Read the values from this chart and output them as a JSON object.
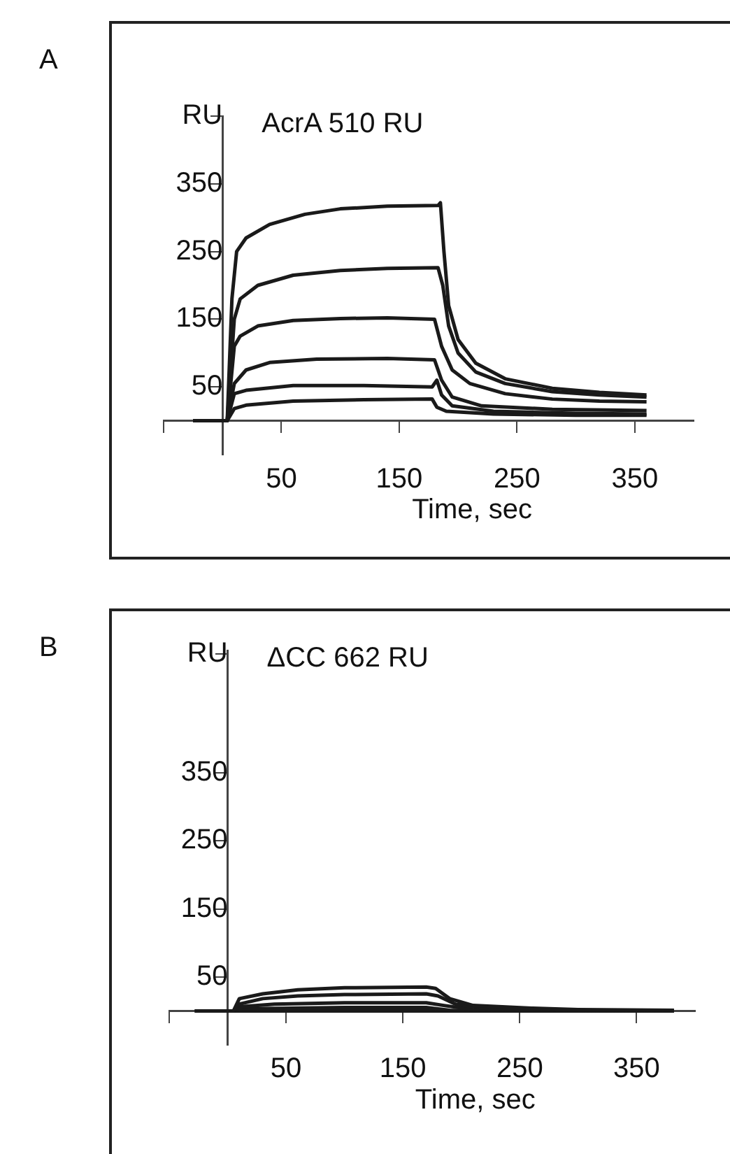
{
  "chart_data": [
    {
      "type": "line",
      "title": "A",
      "xlabel": "Time, sec",
      "annotations": [
        "AcrA 510 RU"
      ],
      "xlim": [
        -50,
        400
      ],
      "ylim": [
        -50,
        450
      ],
      "xticks": [
        {
          "value": -50,
          "label": null
        },
        50,
        150,
        250,
        350
      ],
      "yticks": [
        50,
        150,
        250,
        350,
        {
          "value": 450,
          "label": "RU"
        }
      ],
      "grid": false,
      "legend": false,
      "marker": "none",
      "line_style": "solid",
      "series": [
        {
          "color": "#1a1a1a",
          "x": [
            -25,
            4,
            8,
            12,
            20,
            40,
            70,
            100,
            140,
            183,
            185,
            188,
            192,
            200,
            215,
            240,
            280,
            320,
            360
          ],
          "values": [
            0,
            0,
            180,
            250,
            270,
            290,
            305,
            313,
            317,
            318,
            322,
            250,
            170,
            120,
            85,
            62,
            48,
            42,
            38
          ]
        },
        {
          "color": "#1a1a1a",
          "x": [
            -25,
            4,
            10,
            15,
            30,
            60,
            100,
            140,
            183,
            187,
            192,
            200,
            215,
            240,
            280,
            320,
            360
          ],
          "values": [
            0,
            0,
            150,
            180,
            200,
            215,
            222,
            225,
            226,
            200,
            140,
            100,
            72,
            55,
            43,
            38,
            35
          ]
        },
        {
          "color": "#1a1a1a",
          "x": [
            -25,
            4,
            10,
            15,
            30,
            60,
            100,
            140,
            180,
            186,
            195,
            210,
            240,
            280,
            320,
            360
          ],
          "values": [
            0,
            0,
            110,
            125,
            140,
            148,
            151,
            152,
            150,
            110,
            75,
            55,
            40,
            32,
            29,
            28
          ]
        },
        {
          "color": "#1a1a1a",
          "x": [
            -25,
            4,
            10,
            20,
            40,
            80,
            140,
            180,
            186,
            195,
            220,
            280,
            360
          ],
          "values": [
            0,
            0,
            55,
            75,
            86,
            91,
            92,
            90,
            60,
            35,
            22,
            17,
            15
          ]
        },
        {
          "color": "#1a1a1a",
          "x": [
            -25,
            4,
            10,
            20,
            60,
            120,
            178,
            182,
            186,
            195,
            230,
            300,
            360
          ],
          "values": [
            0,
            0,
            40,
            45,
            52,
            52,
            50,
            60,
            38,
            22,
            14,
            11,
            10
          ]
        },
        {
          "color": "#1a1a1a",
          "x": [
            -25,
            4,
            10,
            20,
            60,
            120,
            178,
            182,
            190,
            230,
            300,
            360
          ],
          "values": [
            0,
            0,
            18,
            23,
            29,
            31,
            32,
            20,
            14,
            10,
            8,
            8
          ]
        }
      ]
    },
    {
      "type": "line",
      "title": "B",
      "xlabel": "Time, sec",
      "annotations": [
        "ΔCC 662 RU"
      ],
      "xlim": [
        -50,
        400
      ],
      "ylim": [
        -50,
        530
      ],
      "xticks": [
        {
          "value": -50,
          "label": null
        },
        50,
        150,
        250,
        350
      ],
      "yticks": [
        50,
        150,
        250,
        350,
        {
          "value": 525,
          "label": "RU"
        }
      ],
      "grid": false,
      "legend": false,
      "marker": "none",
      "line_style": "solid",
      "series": [
        {
          "color": "#1a1a1a",
          "x": [
            -28,
            5,
            10,
            30,
            60,
            100,
            170,
            178,
            190,
            210,
            260,
            300,
            382
          ],
          "values": [
            0,
            0,
            18,
            25,
            31,
            34,
            35,
            33,
            18,
            8,
            4,
            2,
            1
          ]
        },
        {
          "color": "#1a1a1a",
          "x": [
            -28,
            5,
            10,
            30,
            60,
            100,
            170,
            180,
            195,
            220,
            300,
            382
          ],
          "values": [
            0,
            0,
            10,
            18,
            22,
            24,
            25,
            22,
            10,
            4,
            1,
            0
          ]
        },
        {
          "color": "#1a1a1a",
          "x": [
            -28,
            5,
            10,
            40,
            100,
            170,
            185,
            210,
            382
          ],
          "values": [
            0,
            0,
            6,
            10,
            12,
            12,
            8,
            2,
            0
          ]
        },
        {
          "color": "#1a1a1a",
          "x": [
            -28,
            5,
            10,
            100,
            170,
            190,
            382
          ],
          "values": [
            0,
            0,
            3,
            5,
            5,
            1,
            0
          ]
        },
        {
          "color": "#1a1a1a",
          "x": [
            -28,
            382
          ],
          "values": [
            0,
            0
          ]
        }
      ]
    }
  ]
}
